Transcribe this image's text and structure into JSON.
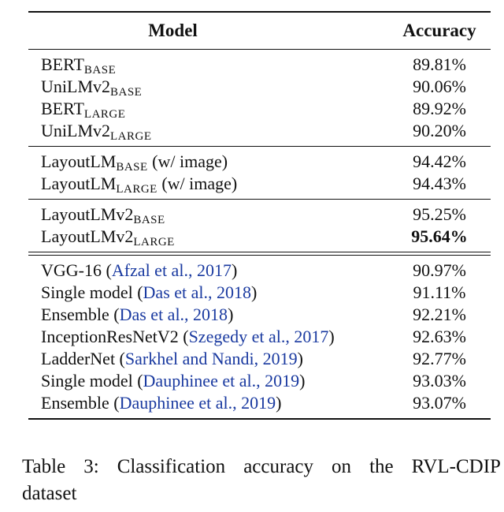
{
  "table": {
    "headers": {
      "model": "Model",
      "accuracy": "Accuracy"
    },
    "groups": [
      {
        "rows": [
          {
            "model": "BERT",
            "sub": "BASE",
            "suffix": "",
            "cite": "",
            "cite_close": "",
            "accuracy": "89.81%"
          },
          {
            "model": "UniLMv2",
            "sub": "BASE",
            "suffix": "",
            "cite": "",
            "cite_close": "",
            "accuracy": "90.06%"
          },
          {
            "model": "BERT",
            "sub": "LARGE",
            "suffix": "",
            "cite": "",
            "cite_close": "",
            "accuracy": "89.92%"
          },
          {
            "model": "UniLMv2",
            "sub": "LARGE",
            "suffix": "",
            "cite": "",
            "cite_close": "",
            "accuracy": "90.20%"
          }
        ]
      },
      {
        "rows": [
          {
            "model": "LayoutLM",
            "sub": "BASE",
            "suffix": " (w/ image)",
            "cite": "",
            "cite_close": "",
            "accuracy": "94.42%"
          },
          {
            "model": "LayoutLM",
            "sub": "LARGE",
            "suffix": " (w/ image)",
            "cite": "",
            "cite_close": "",
            "accuracy": "94.43%"
          }
        ]
      },
      {
        "rows": [
          {
            "model": "LayoutLMv2",
            "sub": "BASE",
            "suffix": "",
            "cite": "",
            "cite_close": "",
            "accuracy": "95.25%"
          },
          {
            "model": "LayoutLMv2",
            "sub": "LARGE",
            "suffix": "",
            "cite": "",
            "cite_close": "",
            "accuracy": "95.64%",
            "bold": true
          }
        ]
      },
      {
        "rows": [
          {
            "model": "VGG-16 (",
            "sub": "",
            "suffix": "",
            "cite": "Afzal et al., 2017",
            "cite_close": ")",
            "accuracy": "90.97%"
          },
          {
            "model": "Single model (",
            "sub": "",
            "suffix": "",
            "cite": "Das et al., 2018",
            "cite_close": ")",
            "accuracy": "91.11%"
          },
          {
            "model": "Ensemble (",
            "sub": "",
            "suffix": "",
            "cite": "Das et al., 2018",
            "cite_close": ")",
            "accuracy": "92.21%"
          },
          {
            "model": "InceptionResNetV2 (",
            "sub": "",
            "suffix": "",
            "cite": "Szegedy et al., 2017",
            "cite_close": ")",
            "accuracy": "92.63%"
          },
          {
            "model": "LadderNet (",
            "sub": "",
            "suffix": "",
            "cite": "Sarkhel and Nandi, 2019",
            "cite_close": ")",
            "accuracy": "92.77%"
          },
          {
            "model": "Single model (",
            "sub": "",
            "suffix": "",
            "cite": "Dauphinee et al., 2019",
            "cite_close": ")",
            "accuracy": "93.03%"
          },
          {
            "model": "Ensemble (",
            "sub": "",
            "suffix": "",
            "cite": "Dauphinee et al., 2019",
            "cite_close": ")",
            "accuracy": "93.07%"
          }
        ]
      }
    ]
  },
  "caption": {
    "line1_words": [
      "Table",
      "3:",
      "Classification",
      "accuracy",
      "on",
      "the",
      "RVL-CDIP"
    ],
    "line2": "dataset"
  },
  "colors": {
    "citation": "#1a3aa0",
    "text": "#111111"
  }
}
